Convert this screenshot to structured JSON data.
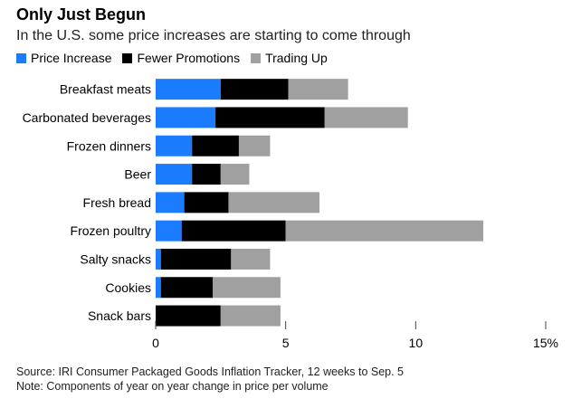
{
  "title": "Only Just Begun",
  "subtitle": "In the U.S. some price increases are starting to come through",
  "legend": [
    {
      "label": "Price Increase",
      "color": "#1b7cff"
    },
    {
      "label": "Fewer Promotions",
      "color": "#000000"
    },
    {
      "label": "Trading Up",
      "color": "#a0a0a0"
    }
  ],
  "source": "Source: IRI Consumer Packaged Goods Inflation Tracker, 12 weeks to Sep. 5",
  "note": "Note: Components of year on year change in price per volume",
  "chart_data": {
    "type": "bar",
    "orientation": "horizontal",
    "stacked": true,
    "categories": [
      "Breakfast meats",
      "Carbonated beverages",
      "Frozen dinners",
      "Beer",
      "Fresh bread",
      "Frozen poultry",
      "Salty snacks",
      "Cookies",
      "Snack bars"
    ],
    "series": [
      {
        "name": "Price Increase",
        "color": "#1b7cff",
        "values": [
          2.5,
          2.3,
          1.4,
          1.4,
          1.1,
          1.0,
          0.2,
          0.2,
          0.0
        ]
      },
      {
        "name": "Fewer Promotions",
        "color": "#000000",
        "values": [
          2.6,
          4.2,
          1.8,
          1.1,
          1.7,
          4.0,
          2.7,
          2.0,
          2.5
        ]
      },
      {
        "name": "Trading Up",
        "color": "#a0a0a0",
        "values": [
          2.3,
          3.2,
          1.2,
          1.1,
          3.5,
          7.6,
          1.5,
          2.6,
          2.3
        ]
      }
    ],
    "xlim": [
      0,
      15
    ],
    "ticks": [
      "0",
      "5",
      "10",
      "15%"
    ],
    "tick_values": [
      0,
      5,
      10,
      15
    ],
    "grid": false,
    "legend_position": "top-left"
  }
}
